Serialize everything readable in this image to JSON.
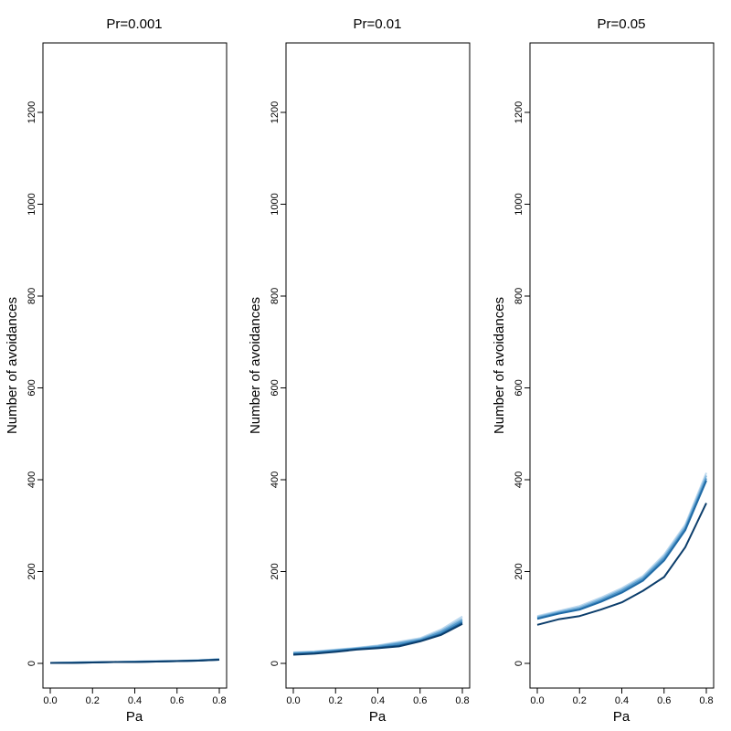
{
  "chart_data": [
    {
      "type": "line",
      "title": "Pr=0.001",
      "xlabel": "Pa",
      "ylabel": "Number of avoidances",
      "xlim": [
        0,
        0.8
      ],
      "ylim": [
        0,
        1300
      ],
      "x_ticks": [
        "0.0",
        "0.2",
        "0.4",
        "0.6",
        "0.8"
      ],
      "y_ticks": [
        "0",
        "200",
        "400",
        "600",
        "800",
        "1000",
        "1200"
      ],
      "grid": false,
      "x": [
        0,
        0.1,
        0.2,
        0.3,
        0.4,
        0.5,
        0.6,
        0.7,
        0.8
      ],
      "series": [
        {
          "color": "#0b3d6b",
          "values": [
            1,
            1,
            2,
            3,
            3,
            4,
            5,
            6,
            8
          ]
        },
        {
          "color": "#1f6aa5",
          "values": [
            1,
            1,
            2,
            3,
            3,
            4,
            5,
            6,
            8
          ]
        },
        {
          "color": "#4f95c8",
          "values": [
            1,
            2,
            2,
            3,
            4,
            4,
            5,
            6,
            9
          ]
        },
        {
          "color": "#85b9de",
          "values": [
            1,
            2,
            3,
            3,
            4,
            5,
            5,
            7,
            9
          ]
        },
        {
          "color": "#bcd8ee",
          "values": [
            1,
            2,
            3,
            3,
            4,
            5,
            6,
            7,
            9
          ]
        }
      ]
    },
    {
      "type": "line",
      "title": "Pr=0.01",
      "xlabel": "Pa",
      "ylabel": "Number of avoidances",
      "xlim": [
        0,
        0.8
      ],
      "ylim": [
        0,
        1300
      ],
      "x_ticks": [
        "0.0",
        "0.2",
        "0.4",
        "0.6",
        "0.8"
      ],
      "y_ticks": [
        "0",
        "200",
        "400",
        "600",
        "800",
        "1000",
        "1200"
      ],
      "grid": false,
      "x": [
        0,
        0.1,
        0.2,
        0.3,
        0.4,
        0.5,
        0.6,
        0.7,
        0.8
      ],
      "series": [
        {
          "color": "#0b3d6b",
          "values": [
            19,
            21,
            25,
            30,
            33,
            37,
            48,
            62,
            86
          ]
        },
        {
          "color": "#1f6aa5",
          "values": [
            20,
            22,
            26,
            31,
            34,
            39,
            49,
            64,
            89
          ]
        },
        {
          "color": "#4f95c8",
          "values": [
            22,
            24,
            28,
            32,
            36,
            43,
            51,
            68,
            93
          ]
        },
        {
          "color": "#85b9de",
          "values": [
            23,
            25,
            29,
            33,
            38,
            45,
            53,
            71,
            97
          ]
        },
        {
          "color": "#bcd8ee",
          "values": [
            24,
            26,
            30,
            34,
            39,
            47,
            55,
            74,
            102
          ]
        }
      ]
    },
    {
      "type": "line",
      "title": "Pr=0.05",
      "xlabel": "Pa",
      "ylabel": "Number of avoidances",
      "xlim": [
        0,
        0.8
      ],
      "ylim": [
        0,
        1300
      ],
      "x_ticks": [
        "0.0",
        "0.2",
        "0.4",
        "0.6",
        "0.8"
      ],
      "y_ticks": [
        "0",
        "200",
        "400",
        "600",
        "800",
        "1000",
        "1200"
      ],
      "grid": false,
      "x": [
        0,
        0.1,
        0.2,
        0.3,
        0.4,
        0.5,
        0.6,
        0.7,
        0.8
      ],
      "series": [
        {
          "color": "#0b3d6b",
          "values": [
            84,
            96,
            103,
            117,
            133,
            158,
            188,
            253,
            349
          ]
        },
        {
          "color": "#1f6aa5",
          "values": [
            97,
            108,
            117,
            134,
            154,
            180,
            224,
            290,
            398
          ]
        },
        {
          "color": "#4f95c8",
          "values": [
            99,
            110,
            119,
            137,
            158,
            184,
            229,
            294,
            403
          ]
        },
        {
          "color": "#85b9de",
          "values": [
            101,
            112,
            122,
            140,
            161,
            187,
            233,
            298,
            409
          ]
        },
        {
          "color": "#bcd8ee",
          "values": [
            103,
            114,
            125,
            143,
            164,
            190,
            237,
            302,
            415
          ]
        }
      ]
    }
  ]
}
